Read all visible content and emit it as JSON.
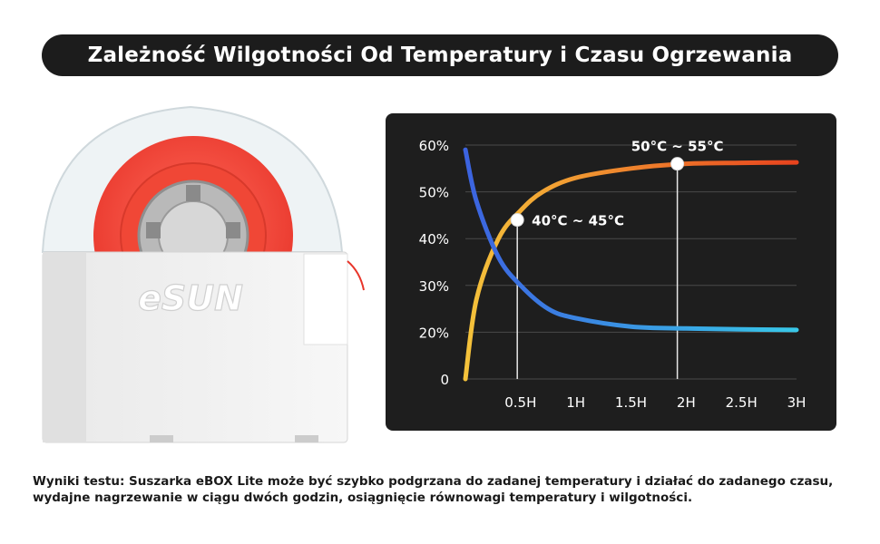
{
  "title": "Zależność Wilgotności Od Temperatury i Czasu Ogrzewania",
  "product": {
    "brand": "eSUN"
  },
  "footnote": "Wyniki testu: Suszarka eBOX Lite może być szybko podgrzana do zadanej temperatury i działać do zadanego czasu, wydajne nagrzewanie w ciągu dwóch godzin, osiągnięcie równowagi temperatury i wilgotności.",
  "chart_data": {
    "type": "line",
    "title": "",
    "xlabel": "",
    "ylabel": "",
    "x_ticks": [
      "0.5H",
      "1H",
      "1.5H",
      "2H",
      "2.5H",
      "3H"
    ],
    "y_ticks": [
      "0",
      "20%",
      "30%",
      "40%",
      "50%",
      "60%"
    ],
    "xlim": [
      0,
      3
    ],
    "ylim": [
      10,
      60
    ],
    "grid": true,
    "series": [
      {
        "color_start": "#f5c33b",
        "color_end": "#e8431e",
        "x": [
          0,
          0.1,
          0.3,
          0.5,
          0.7,
          1.0,
          1.5,
          2.0,
          2.5,
          3.0
        ],
        "y": [
          10,
          27,
          40,
          46,
          50,
          53,
          55,
          56,
          56.2,
          56.3
        ]
      },
      {
        "color_start": "#3c63e0",
        "color_end": "#38c8e8",
        "x": [
          0,
          0.1,
          0.3,
          0.5,
          0.75,
          1.0,
          1.5,
          2.0,
          2.5,
          3.0
        ],
        "y": [
          59,
          48,
          36,
          30,
          25,
          23,
          21.2,
          20.8,
          20.6,
          20.5
        ]
      }
    ],
    "annotations": [
      {
        "label": "40°C ~ 45°C",
        "x": 0.47,
        "y": 44
      },
      {
        "label": "50°C ~ 55°C",
        "x": 1.92,
        "y": 56
      }
    ]
  }
}
